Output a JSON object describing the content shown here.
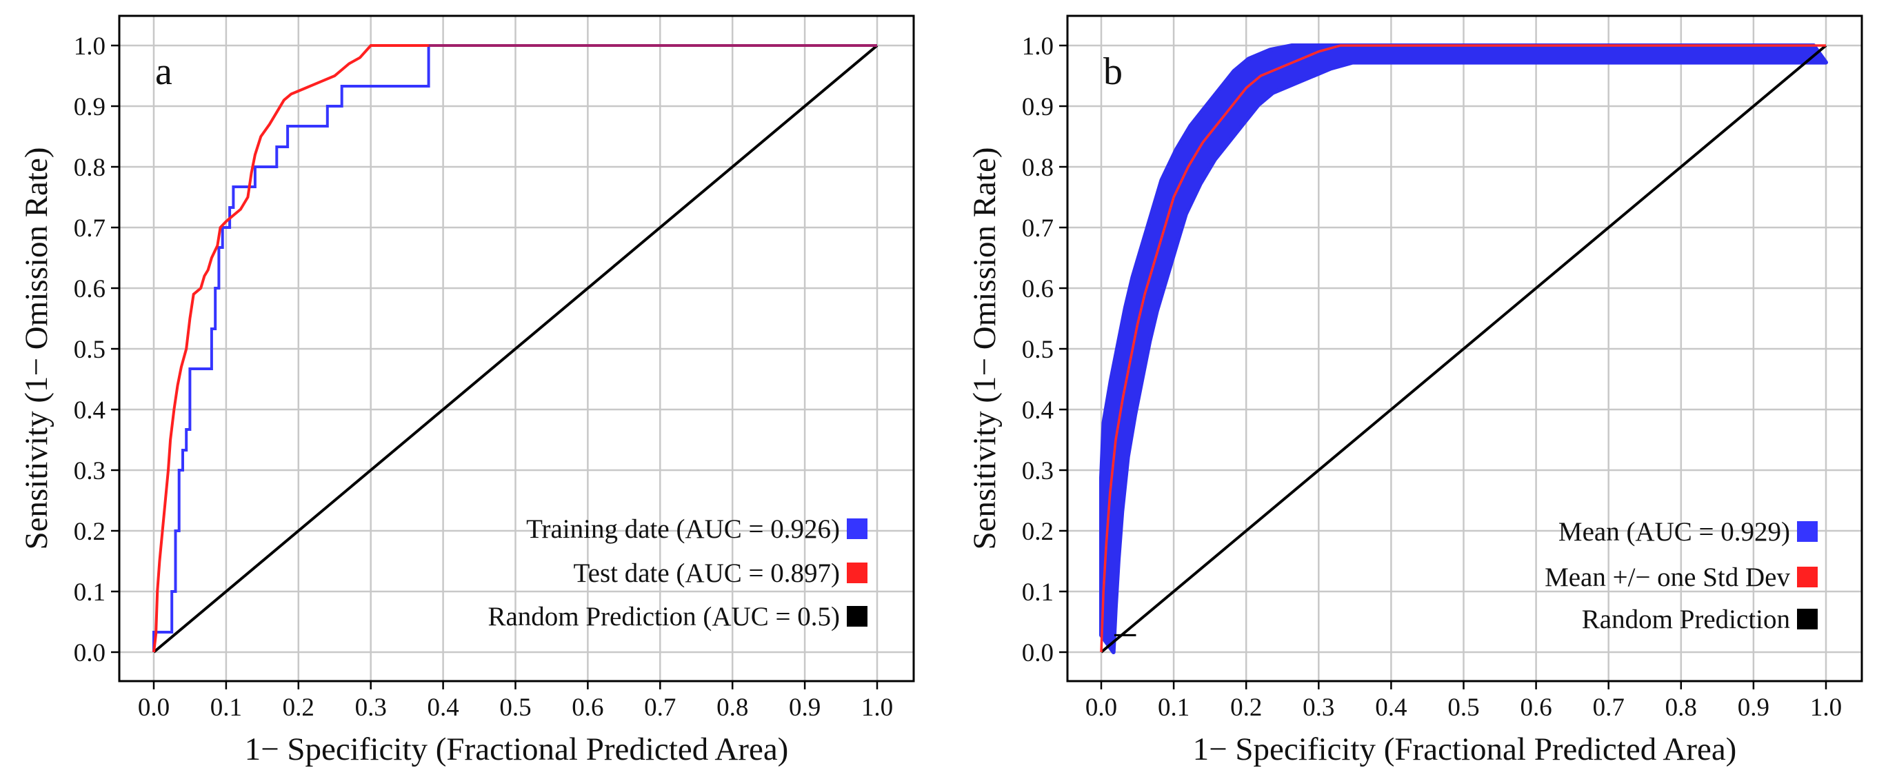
{
  "colors": {
    "blue": "#3535ff",
    "red": "#ff2020",
    "black": "#000000",
    "grid": "#c8c8c8",
    "band": "#2e2ef0",
    "mean": "#ff2a2a"
  },
  "chart_data": [
    {
      "type": "line",
      "panel_label": "a",
      "xlabel": "1− Specificity (Fractional Predicted Area)",
      "ylabel": "Sensitivity (1− Omission Rate)",
      "xlim": [
        0,
        1
      ],
      "ylim": [
        0,
        1
      ],
      "xticks": [
        "0.0",
        "0.1",
        "0.2",
        "0.3",
        "0.4",
        "0.5",
        "0.6",
        "0.7",
        "0.8",
        "0.9",
        "1.0"
      ],
      "yticks": [
        "0.0",
        "0.1",
        "0.2",
        "0.3",
        "0.4",
        "0.5",
        "0.6",
        "0.7",
        "0.8",
        "0.9",
        "1.0"
      ],
      "grid": true,
      "legend_position": "bottom-right",
      "series": [
        {
          "name": "Training date (AUC = 0.926)",
          "color_key": "blue",
          "points": [
            [
              0,
              0
            ],
            [
              0,
              0.033
            ],
            [
              0.025,
              0.033
            ],
            [
              0.025,
              0.1
            ],
            [
              0.03,
              0.1
            ],
            [
              0.03,
              0.2
            ],
            [
              0.035,
              0.2
            ],
            [
              0.035,
              0.3
            ],
            [
              0.04,
              0.3
            ],
            [
              0.04,
              0.333
            ],
            [
              0.045,
              0.333
            ],
            [
              0.045,
              0.367
            ],
            [
              0.05,
              0.367
            ],
            [
              0.05,
              0.467
            ],
            [
              0.08,
              0.467
            ],
            [
              0.08,
              0.533
            ],
            [
              0.085,
              0.533
            ],
            [
              0.085,
              0.6
            ],
            [
              0.09,
              0.6
            ],
            [
              0.09,
              0.667
            ],
            [
              0.095,
              0.667
            ],
            [
              0.095,
              0.7
            ],
            [
              0.105,
              0.7
            ],
            [
              0.105,
              0.733
            ],
            [
              0.11,
              0.733
            ],
            [
              0.11,
              0.767
            ],
            [
              0.14,
              0.767
            ],
            [
              0.14,
              0.8
            ],
            [
              0.17,
              0.8
            ],
            [
              0.17,
              0.833
            ],
            [
              0.185,
              0.833
            ],
            [
              0.185,
              0.867
            ],
            [
              0.24,
              0.867
            ],
            [
              0.24,
              0.9
            ],
            [
              0.26,
              0.9
            ],
            [
              0.26,
              0.933
            ],
            [
              0.38,
              0.933
            ],
            [
              0.38,
              1.0
            ],
            [
              1.0,
              1.0
            ]
          ]
        },
        {
          "name": "Test date (AUC = 0.897)",
          "color_key": "red",
          "points": [
            [
              0,
              0
            ],
            [
              0.003,
              0.03
            ],
            [
              0.005,
              0.1
            ],
            [
              0.008,
              0.15
            ],
            [
              0.012,
              0.2
            ],
            [
              0.016,
              0.25
            ],
            [
              0.02,
              0.3
            ],
            [
              0.023,
              0.35
            ],
            [
              0.028,
              0.4
            ],
            [
              0.033,
              0.44
            ],
            [
              0.038,
              0.47
            ],
            [
              0.045,
              0.5
            ],
            [
              0.05,
              0.55
            ],
            [
              0.055,
              0.59
            ],
            [
              0.065,
              0.6
            ],
            [
              0.07,
              0.62
            ],
            [
              0.075,
              0.63
            ],
            [
              0.08,
              0.65
            ],
            [
              0.088,
              0.67
            ],
            [
              0.092,
              0.7
            ],
            [
              0.1,
              0.71
            ],
            [
              0.11,
              0.72
            ],
            [
              0.12,
              0.73
            ],
            [
              0.13,
              0.75
            ],
            [
              0.135,
              0.79
            ],
            [
              0.14,
              0.82
            ],
            [
              0.148,
              0.85
            ],
            [
              0.16,
              0.87
            ],
            [
              0.17,
              0.89
            ],
            [
              0.18,
              0.91
            ],
            [
              0.19,
              0.92
            ],
            [
              0.21,
              0.93
            ],
            [
              0.23,
              0.94
            ],
            [
              0.25,
              0.95
            ],
            [
              0.27,
              0.97
            ],
            [
              0.285,
              0.98
            ],
            [
              0.3,
              1.0
            ],
            [
              1.0,
              1.0
            ]
          ]
        },
        {
          "name": "Random Prediction (AUC = 0.5)",
          "color_key": "black",
          "points": [
            [
              0,
              0
            ],
            [
              1,
              1
            ]
          ]
        }
      ]
    },
    {
      "type": "area",
      "panel_label": "b",
      "xlabel": "1− Specificity (Fractional Predicted Area)",
      "ylabel": "Sensitivity (1− Omission Rate)",
      "xlim": [
        0,
        1
      ],
      "ylim": [
        0,
        1
      ],
      "xticks": [
        "0.0",
        "0.1",
        "0.2",
        "0.3",
        "0.4",
        "0.5",
        "0.6",
        "0.7",
        "0.8",
        "0.9",
        "1.0"
      ],
      "yticks": [
        "0.0",
        "0.1",
        "0.2",
        "0.3",
        "0.4",
        "0.5",
        "0.6",
        "0.7",
        "0.8",
        "0.9",
        "1.0"
      ],
      "grid": true,
      "legend_position": "bottom-right",
      "series": [
        {
          "name": "Mean (AUC = 0.929)",
          "color_key": "blue",
          "mean": [
            [
              0,
              0
            ],
            [
              0.003,
              0.1
            ],
            [
              0.007,
              0.18
            ],
            [
              0.012,
              0.26
            ],
            [
              0.02,
              0.35
            ],
            [
              0.03,
              0.42
            ],
            [
              0.04,
              0.48
            ],
            [
              0.05,
              0.54
            ],
            [
              0.06,
              0.59
            ],
            [
              0.07,
              0.63
            ],
            [
              0.08,
              0.67
            ],
            [
              0.09,
              0.71
            ],
            [
              0.1,
              0.75
            ],
            [
              0.12,
              0.8
            ],
            [
              0.14,
              0.84
            ],
            [
              0.16,
              0.87
            ],
            [
              0.18,
              0.9
            ],
            [
              0.2,
              0.93
            ],
            [
              0.22,
              0.95
            ],
            [
              0.25,
              0.965
            ],
            [
              0.28,
              0.98
            ],
            [
              0.3,
              0.99
            ],
            [
              0.33,
              1.0
            ],
            [
              1.0,
              1.0
            ]
          ],
          "band": 0.028
        },
        {
          "name": "Mean +/− one Std Dev",
          "color_key": "red"
        },
        {
          "name": "Random Prediction",
          "color_key": "black",
          "points": [
            [
              0,
              0
            ],
            [
              1,
              1
            ]
          ]
        }
      ]
    }
  ]
}
